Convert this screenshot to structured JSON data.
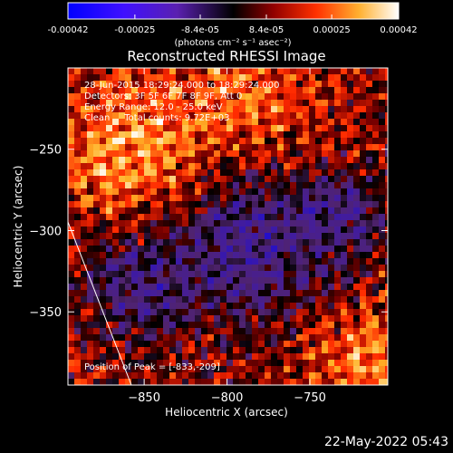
{
  "colorbar": {
    "tick_labels": [
      "-0.00042",
      "-0.00025",
      "-8.4e-05",
      "8.4e-05",
      "0.00025",
      "0.00042"
    ],
    "tick_values": [
      -0.00042,
      -0.00025,
      -8.4e-05,
      8.4e-05,
      0.00025,
      0.00042
    ],
    "range": [
      -0.00042,
      0.00042
    ],
    "units": "(photons cm⁻² s⁻¹ asec⁻²)"
  },
  "chart_data": {
    "type": "heatmap",
    "title": "Reconstructed RHESSI Image",
    "xlabel": "Heliocentric X (arcsec)",
    "ylabel": "Heliocentric Y (arcsec)",
    "xlim": [
      -896,
      -703
    ],
    "ylim": [
      -395,
      -200
    ],
    "xticks": [
      -850,
      -800,
      -750
    ],
    "yticks": [
      -250,
      -300,
      -350
    ],
    "xtick_labels": [
      "−850",
      "−800",
      "−750"
    ],
    "ytick_labels": [
      "−250",
      "−300",
      "−350"
    ],
    "annotations": [
      "28-Jun-2015 18:29:24.000 to 18:29:24.000",
      "Detectors: 3F 5F 6F 7F 8F 9F, Att 0",
      "Energy Range: 12.0 - 25.0 keV",
      "Clean     Total counts: 9.72E+03"
    ],
    "peak_label": "Position of Peak = [-833,-209]",
    "peak_position": [
      -833,
      -209
    ],
    "colormap": [
      "#0000ff",
      "#6a35c4",
      "#5a2a8a",
      "#000000",
      "#7a0000",
      "#ff2a00",
      "#ffd040",
      "#ffffff"
    ],
    "grid": false
  },
  "timestamp": "22-May-2022 05:43"
}
